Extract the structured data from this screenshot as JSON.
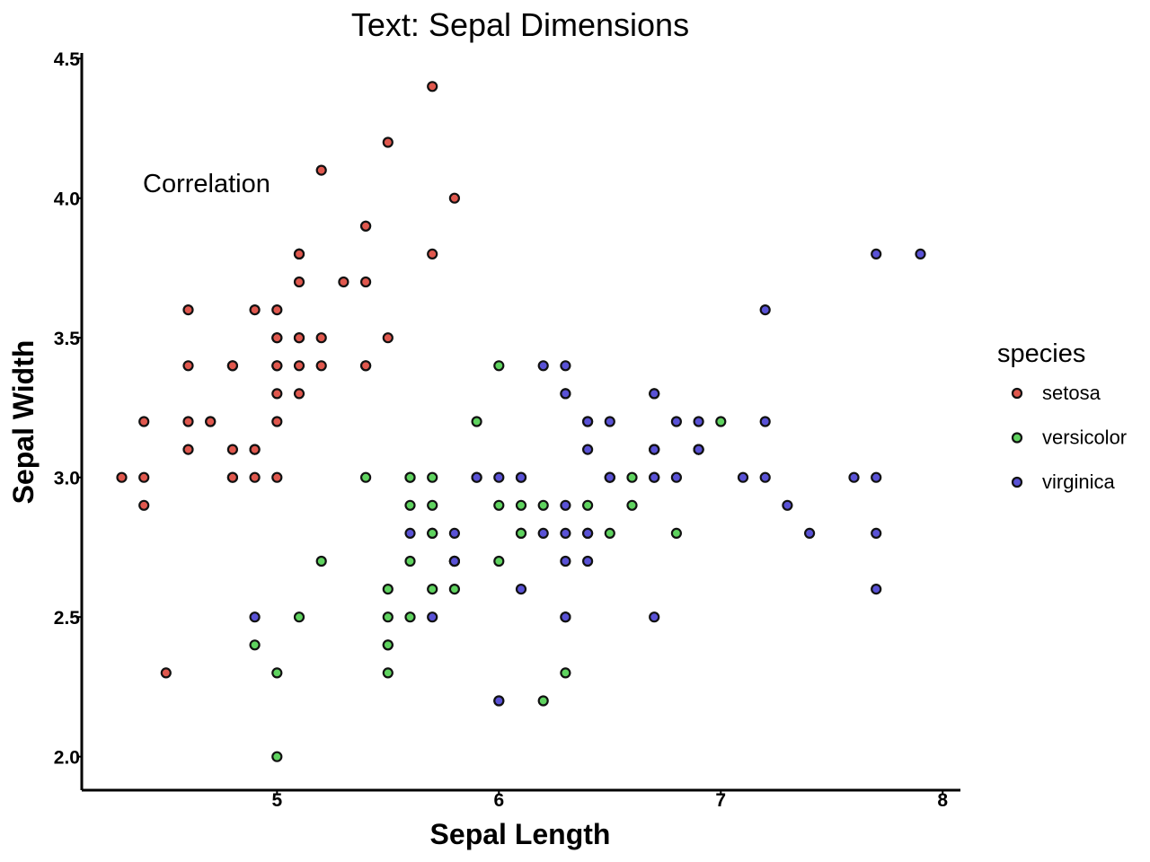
{
  "chart_data": {
    "type": "scatter",
    "title": "Text: Sepal Dimensions",
    "xlabel": "Sepal Length",
    "ylabel": "Sepal Width",
    "xlim": [
      4.12,
      8.08
    ],
    "ylim": [
      1.88,
      4.52
    ],
    "xticks": [
      5,
      6,
      7,
      8
    ],
    "xtick_labels": [
      "5",
      "6",
      "7",
      "8"
    ],
    "yticks": [
      2.0,
      2.5,
      3.0,
      3.5,
      4.0,
      4.5
    ],
    "ytick_labels": [
      "2.0",
      "2.5",
      "3.0",
      "3.5",
      "4.0",
      "4.5"
    ],
    "grid": false,
    "legend_position": "right",
    "legend_title": "species",
    "annotation": {
      "text": "Correlation",
      "x": 4.4,
      "y": 4.05
    },
    "series": [
      {
        "name": "setosa",
        "color": "#e0584e",
        "points": [
          [
            5.1,
            3.5
          ],
          [
            4.9,
            3.0
          ],
          [
            4.7,
            3.2
          ],
          [
            4.6,
            3.1
          ],
          [
            5.0,
            3.6
          ],
          [
            5.4,
            3.9
          ],
          [
            4.6,
            3.4
          ],
          [
            5.0,
            3.4
          ],
          [
            4.4,
            2.9
          ],
          [
            4.9,
            3.1
          ],
          [
            5.4,
            3.7
          ],
          [
            4.8,
            3.4
          ],
          [
            4.8,
            3.0
          ],
          [
            4.3,
            3.0
          ],
          [
            5.8,
            4.0
          ],
          [
            5.7,
            4.4
          ],
          [
            5.4,
            3.9
          ],
          [
            5.1,
            3.5
          ],
          [
            5.7,
            3.8
          ],
          [
            5.1,
            3.8
          ],
          [
            5.4,
            3.4
          ],
          [
            5.1,
            3.7
          ],
          [
            4.6,
            3.6
          ],
          [
            5.1,
            3.3
          ],
          [
            4.8,
            3.4
          ],
          [
            5.0,
            3.0
          ],
          [
            5.0,
            3.4
          ],
          [
            5.2,
            3.5
          ],
          [
            5.2,
            3.4
          ],
          [
            4.7,
            3.2
          ],
          [
            4.8,
            3.1
          ],
          [
            5.4,
            3.4
          ],
          [
            5.2,
            4.1
          ],
          [
            5.5,
            4.2
          ],
          [
            4.9,
            3.1
          ],
          [
            5.0,
            3.2
          ],
          [
            5.5,
            3.5
          ],
          [
            4.9,
            3.6
          ],
          [
            4.4,
            3.0
          ],
          [
            5.1,
            3.4
          ],
          [
            5.0,
            3.5
          ],
          [
            4.5,
            2.3
          ],
          [
            4.4,
            3.2
          ],
          [
            5.0,
            3.5
          ],
          [
            5.1,
            3.8
          ],
          [
            4.8,
            3.0
          ],
          [
            5.1,
            3.8
          ],
          [
            4.6,
            3.2
          ],
          [
            5.3,
            3.7
          ],
          [
            5.0,
            3.3
          ]
        ]
      },
      {
        "name": "versicolor",
        "color": "#5fd35f",
        "points": [
          [
            7.0,
            3.2
          ],
          [
            6.4,
            3.2
          ],
          [
            6.9,
            3.1
          ],
          [
            5.5,
            2.3
          ],
          [
            6.5,
            2.8
          ],
          [
            5.7,
            2.8
          ],
          [
            6.3,
            3.3
          ],
          [
            4.9,
            2.4
          ],
          [
            6.6,
            2.9
          ],
          [
            5.2,
            2.7
          ],
          [
            5.0,
            2.0
          ],
          [
            5.9,
            3.0
          ],
          [
            6.0,
            2.2
          ],
          [
            6.1,
            2.9
          ],
          [
            5.6,
            2.9
          ],
          [
            6.7,
            3.1
          ],
          [
            5.6,
            3.0
          ],
          [
            5.8,
            2.7
          ],
          [
            6.2,
            2.2
          ],
          [
            5.6,
            2.5
          ],
          [
            5.9,
            3.2
          ],
          [
            6.1,
            2.8
          ],
          [
            6.3,
            2.5
          ],
          [
            6.1,
            2.8
          ],
          [
            6.4,
            2.9
          ],
          [
            6.6,
            3.0
          ],
          [
            6.8,
            2.8
          ],
          [
            6.7,
            3.0
          ],
          [
            6.0,
            2.9
          ],
          [
            5.7,
            2.6
          ],
          [
            5.5,
            2.4
          ],
          [
            5.5,
            2.4
          ],
          [
            5.8,
            2.7
          ],
          [
            6.0,
            2.7
          ],
          [
            5.4,
            3.0
          ],
          [
            6.0,
            3.4
          ],
          [
            6.7,
            3.1
          ],
          [
            6.3,
            2.3
          ],
          [
            5.6,
            3.0
          ],
          [
            5.5,
            2.5
          ],
          [
            5.5,
            2.6
          ],
          [
            6.1,
            3.0
          ],
          [
            5.8,
            2.6
          ],
          [
            5.0,
            2.3
          ],
          [
            5.6,
            2.7
          ],
          [
            5.7,
            3.0
          ],
          [
            5.7,
            2.9
          ],
          [
            6.2,
            2.9
          ],
          [
            5.1,
            2.5
          ],
          [
            5.7,
            2.8
          ]
        ]
      },
      {
        "name": "virginica",
        "color": "#5a52d6",
        "points": [
          [
            6.3,
            3.3
          ],
          [
            5.8,
            2.7
          ],
          [
            7.1,
            3.0
          ],
          [
            6.3,
            2.9
          ],
          [
            6.5,
            3.0
          ],
          [
            7.6,
            3.0
          ],
          [
            4.9,
            2.5
          ],
          [
            7.3,
            2.9
          ],
          [
            6.7,
            2.5
          ],
          [
            7.2,
            3.6
          ],
          [
            6.5,
            3.2
          ],
          [
            6.4,
            2.7
          ],
          [
            6.8,
            3.0
          ],
          [
            5.7,
            2.5
          ],
          [
            5.8,
            2.8
          ],
          [
            6.4,
            3.2
          ],
          [
            6.5,
            3.0
          ],
          [
            7.7,
            3.8
          ],
          [
            7.7,
            2.6
          ],
          [
            6.0,
            2.2
          ],
          [
            6.9,
            3.2
          ],
          [
            5.6,
            2.8
          ],
          [
            7.7,
            2.8
          ],
          [
            6.3,
            2.7
          ],
          [
            6.7,
            3.3
          ],
          [
            7.2,
            3.2
          ],
          [
            6.2,
            2.8
          ],
          [
            6.1,
            3.0
          ],
          [
            6.4,
            2.8
          ],
          [
            7.2,
            3.0
          ],
          [
            7.4,
            2.8
          ],
          [
            7.9,
            3.8
          ],
          [
            6.4,
            2.8
          ],
          [
            6.3,
            2.8
          ],
          [
            6.1,
            2.6
          ],
          [
            7.7,
            3.0
          ],
          [
            6.3,
            3.4
          ],
          [
            6.4,
            3.1
          ],
          [
            6.0,
            3.0
          ],
          [
            6.9,
            3.1
          ],
          [
            6.7,
            3.1
          ],
          [
            6.9,
            3.1
          ],
          [
            5.8,
            2.7
          ],
          [
            6.8,
            3.2
          ],
          [
            6.7,
            3.3
          ],
          [
            6.7,
            3.0
          ],
          [
            6.3,
            2.5
          ],
          [
            6.5,
            3.0
          ],
          [
            6.2,
            3.4
          ],
          [
            5.9,
            3.0
          ]
        ]
      }
    ]
  }
}
